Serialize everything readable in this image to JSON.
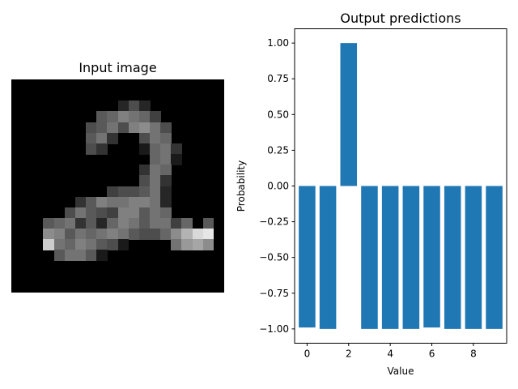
{
  "input_panel": {
    "title": "Input image",
    "grid_size": 20,
    "pixels": [
      [
        0,
        0,
        0,
        0,
        0,
        0,
        0,
        0,
        0,
        0,
        0,
        0,
        0,
        0,
        0,
        0,
        0,
        0,
        0,
        0
      ],
      [
        0,
        0,
        0,
        0,
        0,
        0,
        0,
        0,
        0,
        0,
        0,
        0,
        0,
        0,
        0,
        0,
        0,
        0,
        0,
        0
      ],
      [
        0,
        0,
        0,
        0,
        0,
        0,
        0,
        0,
        0,
        0,
        0.15,
        0.3,
        0.15,
        0,
        0,
        0,
        0,
        0,
        0,
        0
      ],
      [
        0,
        0,
        0,
        0,
        0,
        0,
        0,
        0,
        0.35,
        0.4,
        0.5,
        0.45,
        0.4,
        0.25,
        0,
        0,
        0,
        0,
        0,
        0
      ],
      [
        0,
        0,
        0,
        0,
        0,
        0,
        0,
        0.3,
        0.35,
        0.45,
        0.3,
        0.5,
        0.55,
        0.45,
        0.3,
        0,
        0,
        0,
        0,
        0
      ],
      [
        0,
        0,
        0,
        0,
        0,
        0,
        0,
        0.35,
        0.45,
        0.2,
        0,
        0,
        0.3,
        0.45,
        0.4,
        0,
        0,
        0,
        0,
        0
      ],
      [
        0,
        0,
        0,
        0,
        0,
        0,
        0,
        0.3,
        0.2,
        0,
        0,
        0,
        0.1,
        0.4,
        0.45,
        0.2,
        0,
        0,
        0,
        0
      ],
      [
        0,
        0,
        0,
        0,
        0,
        0,
        0,
        0,
        0,
        0,
        0,
        0,
        0,
        0.4,
        0.45,
        0.1,
        0,
        0,
        0,
        0
      ],
      [
        0,
        0,
        0,
        0,
        0,
        0,
        0,
        0,
        0,
        0,
        0,
        0,
        0.2,
        0.45,
        0.4,
        0,
        0,
        0,
        0,
        0
      ],
      [
        0,
        0,
        0,
        0,
        0,
        0,
        0,
        0,
        0,
        0,
        0,
        0,
        0.3,
        0.45,
        0.2,
        0,
        0,
        0,
        0,
        0
      ],
      [
        0,
        0,
        0,
        0,
        0,
        0,
        0,
        0,
        0,
        0.25,
        0.3,
        0.3,
        0.35,
        0.45,
        0.15,
        0,
        0,
        0,
        0,
        0
      ],
      [
        0,
        0,
        0,
        0,
        0,
        0,
        0.2,
        0.35,
        0.5,
        0.45,
        0.45,
        0.5,
        0.5,
        0.45,
        0.15,
        0,
        0,
        0,
        0,
        0
      ],
      [
        0,
        0,
        0,
        0,
        0,
        0.3,
        0.45,
        0.35,
        0.3,
        0.25,
        0.5,
        0.5,
        0.35,
        0.45,
        0.4,
        0,
        0,
        0,
        0,
        0
      ],
      [
        0,
        0,
        0,
        0.35,
        0.4,
        0.45,
        0.2,
        0.35,
        0.15,
        0.4,
        0.5,
        0.45,
        0.35,
        0.45,
        0.45,
        0.25,
        0.4,
        0,
        0.35,
        0
      ],
      [
        0,
        0,
        0,
        0.55,
        0.5,
        0.35,
        0.45,
        0.4,
        0.45,
        0.5,
        0.45,
        0.35,
        0.3,
        0.3,
        0.4,
        0.55,
        0.7,
        0.85,
        0.9,
        0
      ],
      [
        0,
        0,
        0,
        0.8,
        0.45,
        0.4,
        0.5,
        0.45,
        0.35,
        0.3,
        0.1,
        0,
        0,
        0,
        0,
        0.45,
        0.6,
        0.65,
        0.55,
        0
      ],
      [
        0,
        0,
        0,
        0,
        0.35,
        0.45,
        0.45,
        0.35,
        0.1,
        0,
        0,
        0,
        0,
        0,
        0,
        0,
        0,
        0,
        0,
        0
      ],
      [
        0,
        0,
        0,
        0,
        0,
        0,
        0,
        0,
        0,
        0,
        0,
        0,
        0,
        0,
        0,
        0,
        0,
        0,
        0,
        0
      ],
      [
        0,
        0,
        0,
        0,
        0,
        0,
        0,
        0,
        0,
        0,
        0,
        0,
        0,
        0,
        0,
        0,
        0,
        0,
        0,
        0
      ],
      [
        0,
        0,
        0,
        0,
        0,
        0,
        0,
        0,
        0,
        0,
        0,
        0,
        0,
        0,
        0,
        0,
        0,
        0,
        0,
        0
      ]
    ]
  },
  "chart_data": {
    "type": "bar",
    "title": "Output predictions",
    "xlabel": "Value",
    "ylabel": "Probability",
    "categories": [
      0,
      1,
      2,
      3,
      4,
      5,
      6,
      7,
      8,
      9
    ],
    "values": [
      -0.99,
      -1.0,
      1.0,
      -1.0,
      -1.0,
      -1.0,
      -0.99,
      -1.0,
      -1.0,
      -1.0
    ],
    "xlim": [
      -0.6,
      9.6
    ],
    "ylim": [
      -1.1,
      1.1
    ],
    "xticks": [
      0,
      2,
      4,
      6,
      8
    ],
    "yticks": [
      1.0,
      0.75,
      0.5,
      0.25,
      0.0,
      -0.25,
      -0.5,
      -0.75,
      -1.0
    ],
    "ytick_labels": [
      "1.00",
      "0.75",
      "0.50",
      "0.25",
      "0.00",
      "−0.25",
      "−0.50",
      "−0.75",
      "−1.00"
    ],
    "bar_color": "#1f77b4",
    "grid": false
  }
}
